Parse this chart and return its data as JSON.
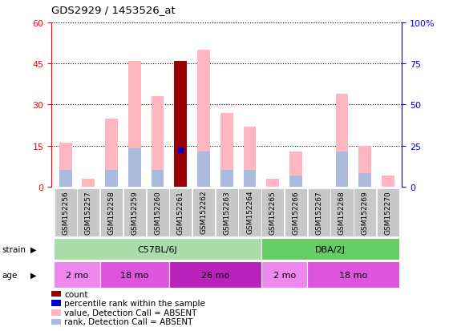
{
  "title": "GDS2929 / 1453526_at",
  "samples": [
    "GSM152256",
    "GSM152257",
    "GSM152258",
    "GSM152259",
    "GSM152260",
    "GSM152261",
    "GSM152262",
    "GSM152263",
    "GSM152264",
    "GSM152265",
    "GSM152266",
    "GSM152267",
    "GSM152268",
    "GSM152269",
    "GSM152270"
  ],
  "value_absent": [
    16,
    3,
    25,
    46,
    33,
    0,
    50,
    27,
    22,
    3,
    13,
    0,
    34,
    15,
    4
  ],
  "rank_absent": [
    6,
    0,
    6,
    14,
    6,
    0,
    13,
    6,
    6,
    0,
    4,
    0,
    13,
    5,
    0
  ],
  "count_present": [
    0,
    0,
    0,
    0,
    0,
    46,
    0,
    0,
    0,
    0,
    0,
    0,
    0,
    0,
    0
  ],
  "rank_present": [
    0,
    0,
    0,
    0,
    0,
    13.5,
    0,
    0,
    0,
    0,
    0,
    0,
    0,
    0,
    0
  ],
  "ylim_left": [
    0,
    60
  ],
  "ylim_right": [
    0,
    100
  ],
  "yticks_left": [
    0,
    15,
    30,
    45,
    60
  ],
  "yticks_right": [
    0,
    25,
    50,
    75,
    100
  ],
  "ytick_labels_right": [
    "0",
    "25",
    "50",
    "75",
    "100%"
  ],
  "strain_groups": [
    {
      "label": "C57BL/6J",
      "start": 0,
      "end": 9,
      "color": "#AADDAA"
    },
    {
      "label": "DBA/2J",
      "start": 9,
      "end": 15,
      "color": "#66CC66"
    }
  ],
  "age_groups": [
    {
      "label": "2 mo",
      "start": 0,
      "end": 2,
      "color": "#EE88EE"
    },
    {
      "label": "18 mo",
      "start": 2,
      "end": 5,
      "color": "#DD55DD"
    },
    {
      "label": "26 mo",
      "start": 5,
      "end": 9,
      "color": "#CC22CC"
    },
    {
      "label": "2 mo",
      "start": 9,
      "end": 11,
      "color": "#EE88EE"
    },
    {
      "label": "18 mo",
      "start": 11,
      "end": 15,
      "color": "#DD55DD"
    }
  ],
  "color_value_absent": "#FFB6C1",
  "color_rank_absent": "#AABBDD",
  "color_count": "#990000",
  "color_rank_present": "#0000CC",
  "bar_width": 0.55
}
